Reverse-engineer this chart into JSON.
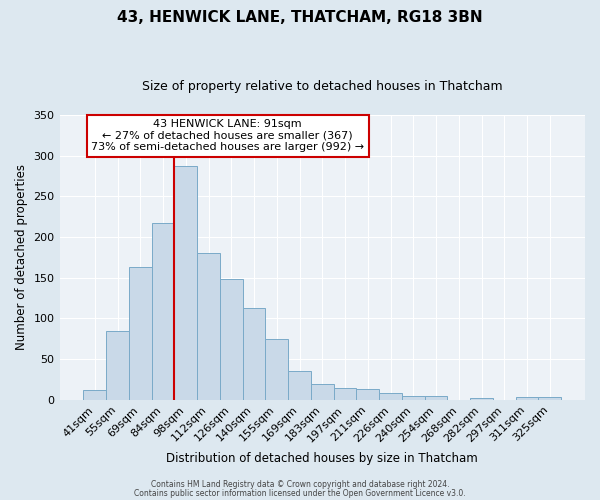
{
  "title": "43, HENWICK LANE, THATCHAM, RG18 3BN",
  "subtitle": "Size of property relative to detached houses in Thatcham",
  "xlabel": "Distribution of detached houses by size in Thatcham",
  "ylabel": "Number of detached properties",
  "bar_labels": [
    "41sqm",
    "55sqm",
    "69sqm",
    "84sqm",
    "98sqm",
    "112sqm",
    "126sqm",
    "140sqm",
    "155sqm",
    "169sqm",
    "183sqm",
    "197sqm",
    "211sqm",
    "226sqm",
    "240sqm",
    "254sqm",
    "268sqm",
    "282sqm",
    "297sqm",
    "311sqm",
    "325sqm"
  ],
  "bar_values": [
    12,
    85,
    163,
    217,
    287,
    181,
    149,
    113,
    75,
    35,
    19,
    14,
    13,
    9,
    5,
    5,
    0,
    2,
    0,
    3,
    4
  ],
  "bar_color": "#c9d9e8",
  "bar_edge_color": "#7aaac8",
  "vline_x": 3.5,
  "vline_color": "#cc0000",
  "annotation_title": "43 HENWICK LANE: 91sqm",
  "annotation_line1": "← 27% of detached houses are smaller (367)",
  "annotation_line2": "73% of semi-detached houses are larger (992) →",
  "annotation_box_color": "#ffffff",
  "annotation_box_edge": "#cc0000",
  "ylim": [
    0,
    350
  ],
  "yticks": [
    0,
    50,
    100,
    150,
    200,
    250,
    300,
    350
  ],
  "footer1": "Contains HM Land Registry data © Crown copyright and database right 2024.",
  "footer2": "Contains public sector information licensed under the Open Government Licence v3.0.",
  "bg_color": "#dde8f0",
  "plot_bg_color": "#edf2f7"
}
